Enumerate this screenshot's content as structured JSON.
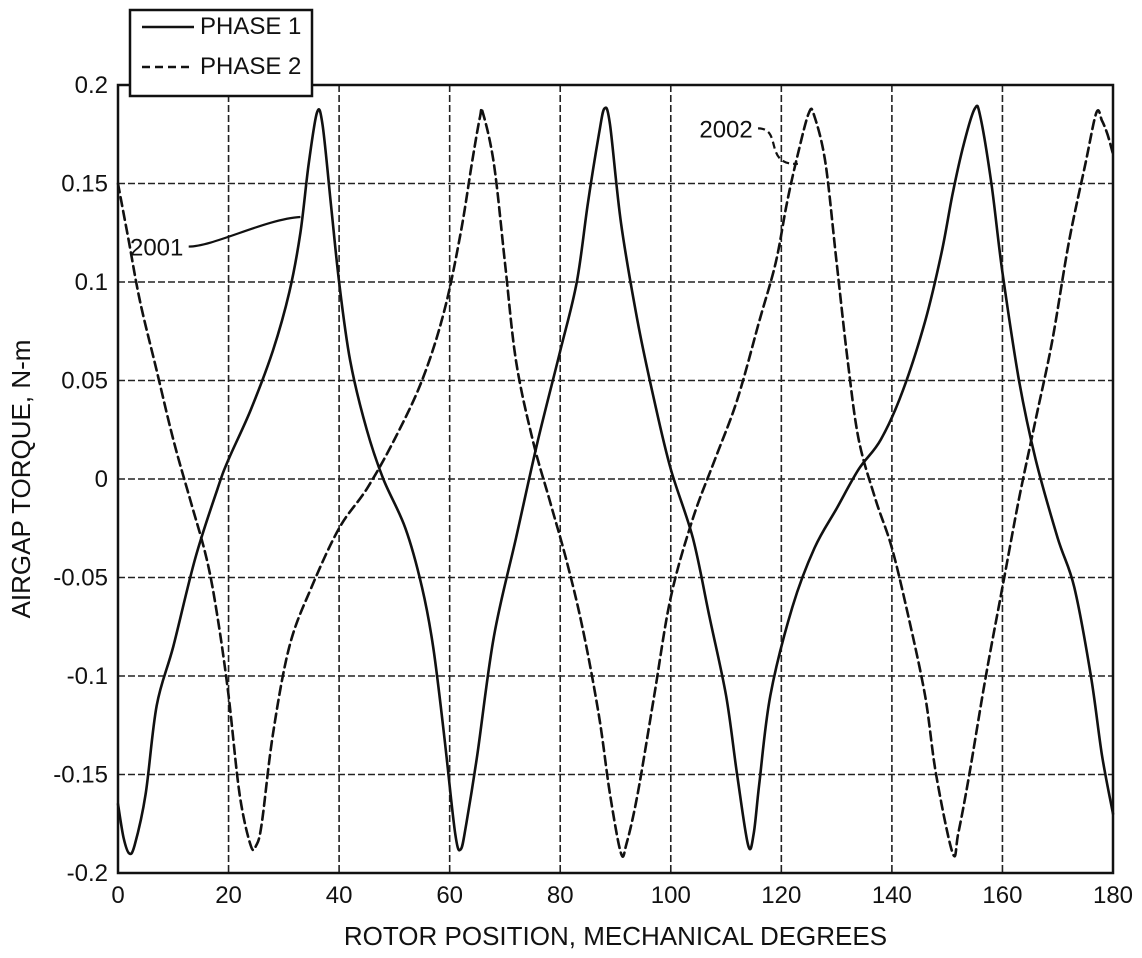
{
  "chart_data": {
    "type": "line",
    "title": "",
    "xlabel": "ROTOR POSITION, MECHANICAL DEGREES",
    "ylabel": "AIRGAP TORQUE, N-m",
    "xlim": [
      0,
      180
    ],
    "ylim": [
      -0.2,
      0.2
    ],
    "xticks": [
      0,
      20,
      40,
      60,
      80,
      100,
      120,
      140,
      160,
      180
    ],
    "yticks": [
      -0.2,
      -0.15,
      -0.1,
      -0.05,
      0,
      0.05,
      0.1,
      0.15,
      0.2
    ],
    "xtick_labels": [
      "0",
      "20",
      "40",
      "60",
      "80",
      "100",
      "120",
      "140",
      "160",
      "180"
    ],
    "ytick_labels": [
      "-0.2",
      "-0.15",
      "-0.1",
      "-0.05",
      "0",
      "0.05",
      "0.1",
      "0.15",
      "0.2"
    ],
    "grid": true,
    "legend_position": "top-left, outside above plot",
    "series": [
      {
        "name": "PHASE 1",
        "style": "solid",
        "color": "#111111",
        "points": [
          [
            0,
            -0.165
          ],
          [
            1,
            -0.182
          ],
          [
            2,
            -0.19
          ],
          [
            3,
            -0.186
          ],
          [
            5,
            -0.16
          ],
          [
            7,
            -0.115
          ],
          [
            10,
            -0.085
          ],
          [
            14,
            -0.04
          ],
          [
            18,
            -0.005
          ],
          [
            20,
            0.01
          ],
          [
            24,
            0.035
          ],
          [
            28,
            0.065
          ],
          [
            31,
            0.095
          ],
          [
            33,
            0.125
          ],
          [
            34.5,
            0.16
          ],
          [
            36,
            0.186
          ],
          [
            37,
            0.18
          ],
          [
            38.5,
            0.14
          ],
          [
            40,
            0.1
          ],
          [
            42,
            0.06
          ],
          [
            45,
            0.025
          ],
          [
            48,
            0.0
          ],
          [
            52,
            -0.025
          ],
          [
            55,
            -0.055
          ],
          [
            57,
            -0.085
          ],
          [
            59,
            -0.13
          ],
          [
            61,
            -0.18
          ],
          [
            62,
            -0.188
          ],
          [
            63,
            -0.175
          ],
          [
            65,
            -0.14
          ],
          [
            68,
            -0.08
          ],
          [
            72,
            -0.03
          ],
          [
            76,
            0.02
          ],
          [
            80,
            0.065
          ],
          [
            83,
            0.1
          ],
          [
            85,
            0.14
          ],
          [
            87,
            0.175
          ],
          [
            88,
            0.188
          ],
          [
            89,
            0.18
          ],
          [
            91,
            0.13
          ],
          [
            94,
            0.08
          ],
          [
            97,
            0.04
          ],
          [
            100,
            0.005
          ],
          [
            104,
            -0.03
          ],
          [
            107,
            -0.07
          ],
          [
            110,
            -0.11
          ],
          [
            112,
            -0.15
          ],
          [
            114,
            -0.186
          ],
          [
            115,
            -0.18
          ],
          [
            116,
            -0.155
          ],
          [
            118,
            -0.11
          ],
          [
            122,
            -0.065
          ],
          [
            126,
            -0.035
          ],
          [
            130,
            -0.015
          ],
          [
            134,
            0.005
          ],
          [
            138,
            0.02
          ],
          [
            142,
            0.045
          ],
          [
            146,
            0.08
          ],
          [
            149,
            0.115
          ],
          [
            151,
            0.145
          ],
          [
            153,
            0.17
          ],
          [
            155,
            0.188
          ],
          [
            156,
            0.184
          ],
          [
            158,
            0.15
          ],
          [
            160,
            0.105
          ],
          [
            163,
            0.05
          ],
          [
            166,
            0.01
          ],
          [
            170,
            -0.03
          ],
          [
            173,
            -0.055
          ],
          [
            176,
            -0.1
          ],
          [
            178,
            -0.14
          ],
          [
            180,
            -0.17
          ]
        ]
      },
      {
        "name": "PHASE 2",
        "style": "dashed",
        "color": "#111111",
        "points": [
          [
            0,
            0.15
          ],
          [
            2,
            0.12
          ],
          [
            4,
            0.09
          ],
          [
            7,
            0.055
          ],
          [
            10,
            0.02
          ],
          [
            13,
            -0.01
          ],
          [
            16,
            -0.04
          ],
          [
            18,
            -0.07
          ],
          [
            20,
            -0.11
          ],
          [
            22,
            -0.16
          ],
          [
            24,
            -0.186
          ],
          [
            25,
            -0.186
          ],
          [
            26,
            -0.175
          ],
          [
            28,
            -0.13
          ],
          [
            31,
            -0.085
          ],
          [
            35,
            -0.055
          ],
          [
            40,
            -0.025
          ],
          [
            45,
            -0.005
          ],
          [
            50,
            0.02
          ],
          [
            55,
            0.05
          ],
          [
            59,
            0.085
          ],
          [
            62,
            0.125
          ],
          [
            64,
            0.16
          ],
          [
            65.5,
            0.184
          ],
          [
            66,
            0.186
          ],
          [
            68,
            0.16
          ],
          [
            70,
            0.11
          ],
          [
            72,
            0.06
          ],
          [
            75,
            0.02
          ],
          [
            78,
            -0.01
          ],
          [
            81,
            -0.04
          ],
          [
            84,
            -0.075
          ],
          [
            87,
            -0.12
          ],
          [
            89,
            -0.16
          ],
          [
            91,
            -0.19
          ],
          [
            92,
            -0.185
          ],
          [
            94,
            -0.16
          ],
          [
            97,
            -0.11
          ],
          [
            100,
            -0.06
          ],
          [
            104,
            -0.02
          ],
          [
            108,
            0.01
          ],
          [
            112,
            0.04
          ],
          [
            116,
            0.08
          ],
          [
            119,
            0.11
          ],
          [
            121,
            0.14
          ],
          [
            123,
            0.165
          ],
          [
            125,
            0.186
          ],
          [
            126,
            0.184
          ],
          [
            128,
            0.16
          ],
          [
            130,
            0.11
          ],
          [
            132,
            0.06
          ],
          [
            134,
            0.02
          ],
          [
            137,
            -0.01
          ],
          [
            140,
            -0.035
          ],
          [
            143,
            -0.07
          ],
          [
            146,
            -0.11
          ],
          [
            148,
            -0.15
          ],
          [
            151,
            -0.19
          ],
          [
            152,
            -0.18
          ],
          [
            154,
            -0.15
          ],
          [
            157,
            -0.1
          ],
          [
            160,
            -0.055
          ],
          [
            163,
            -0.01
          ],
          [
            166,
            0.03
          ],
          [
            169,
            0.07
          ],
          [
            172,
            0.12
          ],
          [
            175,
            0.16
          ],
          [
            177,
            0.186
          ],
          [
            178,
            0.182
          ],
          [
            179,
            0.175
          ],
          [
            180,
            0.165
          ]
        ]
      }
    ],
    "annotations": [
      {
        "label": "2001",
        "target_series": "PHASE 1",
        "target_x": 33,
        "target_y": 0.133,
        "text_x": 7,
        "text_y": 0.118
      },
      {
        "label": "2002",
        "target_series": "PHASE 2",
        "target_x": 123,
        "target_y": 0.16,
        "text_x": 110,
        "text_y": 0.178
      }
    ]
  }
}
